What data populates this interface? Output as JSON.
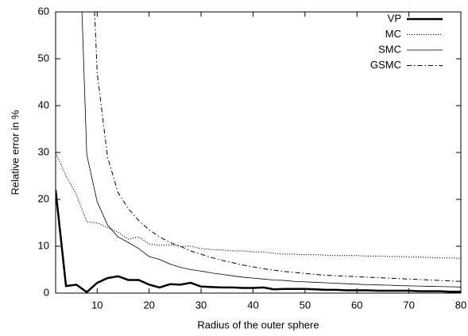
{
  "chart_data": {
    "type": "line",
    "xlabel": "Radius of the outer sphere",
    "ylabel": "Relative error in %",
    "x": [
      2,
      4,
      6,
      8,
      10,
      12,
      14,
      16,
      18,
      20,
      22,
      24,
      26,
      28,
      30,
      32,
      34,
      36,
      38,
      40,
      42,
      44,
      46,
      48,
      50,
      52,
      54,
      56,
      58,
      60,
      62,
      64,
      66,
      68,
      70,
      72,
      74,
      76,
      78,
      80
    ],
    "series": [
      {
        "name": "VP",
        "color": "#000000",
        "dash": "solid",
        "width": 2.5,
        "values": [
          22,
          1.5,
          1.8,
          0.2,
          2.2,
          3.2,
          3.6,
          2.8,
          2.8,
          1.8,
          1.2,
          1.9,
          1.8,
          2.2,
          1.4,
          1.3,
          1.2,
          1.2,
          1.1,
          1.1,
          1.2,
          0.8,
          0.9,
          0.9,
          0.9,
          0.8,
          0.7,
          0.7,
          0.6,
          0.6,
          0.6,
          0.5,
          0.5,
          0.5,
          0.5,
          0.4,
          0.4,
          0.4,
          0.3,
          0.3
        ]
      },
      {
        "name": "MC",
        "color": "#000000",
        "dash": "dotted",
        "width": 1,
        "values": [
          30,
          25,
          21,
          15.2,
          15,
          14,
          13,
          11.5,
          12,
          10.5,
          10.2,
          10.3,
          10,
          10,
          9.5,
          9.3,
          9.2,
          9,
          9,
          8.8,
          8.8,
          8.5,
          8.3,
          8.3,
          8.2,
          8.2,
          8.1,
          8,
          8,
          8,
          7.9,
          7.9,
          7.8,
          7.8,
          7.7,
          7.7,
          7.6,
          7.5,
          7.5,
          7.4
        ]
      },
      {
        "name": "SMC",
        "color": "#000000",
        "dash": "solid",
        "width": 0.8,
        "values": [
          null,
          null,
          95,
          29.5,
          19.5,
          14.5,
          12,
          10.8,
          9.5,
          7.8,
          7.2,
          6.2,
          5.5,
          5,
          4.7,
          4.3,
          4,
          3.7,
          3.4,
          3.2,
          3,
          2.8,
          2.7,
          2.5,
          2.4,
          2.3,
          2.2,
          2.1,
          2,
          1.9,
          1.8,
          1.75,
          1.7,
          1.6,
          1.55,
          1.5,
          1.45,
          1.4,
          1.35,
          1.3
        ]
      },
      {
        "name": "GSMC",
        "color": "#000000",
        "dash": "dashdot",
        "width": 1,
        "values": [
          null,
          null,
          null,
          99,
          47,
          29,
          21.5,
          18,
          15.5,
          13.5,
          12,
          10.8,
          10,
          9,
          8.3,
          7.6,
          7,
          6.5,
          6,
          5.6,
          5.2,
          4.9,
          4.6,
          4.4,
          4.2,
          4,
          3.8,
          3.7,
          3.6,
          3.5,
          3.4,
          3.3,
          3.2,
          3.1,
          3,
          2.9,
          2.8,
          2.7,
          2.6,
          2.5
        ]
      }
    ],
    "xlim": [
      2,
      80
    ],
    "xticks": [
      10,
      20,
      30,
      40,
      50,
      60,
      70,
      80
    ],
    "ylim": [
      0,
      60
    ],
    "yticks": [
      0,
      10,
      20,
      30,
      40,
      50,
      60
    ],
    "grid": false,
    "legend": "upper right"
  }
}
